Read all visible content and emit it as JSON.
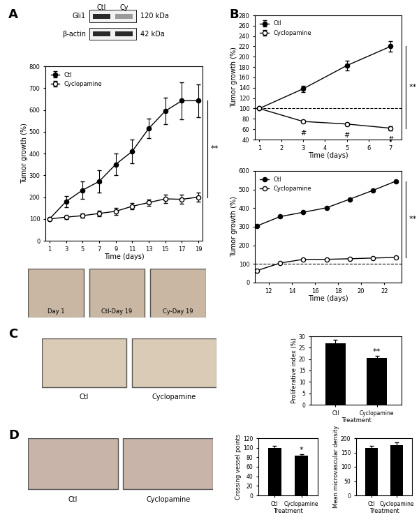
{
  "panel_labels": [
    "A",
    "B",
    "C",
    "D"
  ],
  "blot": {
    "lanes": [
      "Ctl",
      "Cy"
    ],
    "bands": [
      {
        "name": "Gli1",
        "size": "120 kDa"
      },
      {
        "name": "β-actin",
        "size": "42 kDa"
      }
    ]
  },
  "photos": {
    "A": [
      "Day 1",
      "Ctl-Day 19",
      "Cy-Day 19"
    ],
    "C": [
      "Ctl",
      "Cyclopamine"
    ],
    "D": [
      "Ctl",
      "Cyclopamine"
    ]
  },
  "chart_data": [
    {
      "type": "line",
      "x_label": "Time (days)",
      "y_label": "Tumor growth (%)",
      "x": [
        1,
        3,
        5,
        7,
        9,
        11,
        13,
        15,
        17,
        19
      ],
      "xlim": [
        0.5,
        19.5
      ],
      "xticks": [
        1,
        3,
        5,
        7,
        9,
        11,
        13,
        15,
        17,
        19
      ],
      "ylim": [
        0,
        800
      ],
      "yticks": [
        0,
        100,
        200,
        300,
        400,
        500,
        600,
        700,
        800
      ],
      "legend": "upper left",
      "series": [
        {
          "name": "Ctl",
          "color": "#000000",
          "marker": "filled_circle",
          "values": [
            100,
            180,
            232,
            272,
            350,
            410,
            515,
            595,
            642,
            642
          ],
          "error": [
            0,
            25,
            40,
            50,
            50,
            55,
            45,
            60,
            85,
            75
          ]
        },
        {
          "name": "Cyclopamine",
          "color": "#000000",
          "marker": "open_circle",
          "values": [
            100,
            108,
            115,
            125,
            135,
            158,
            175,
            192,
            190,
            200
          ],
          "error": [
            0,
            8,
            10,
            12,
            15,
            15,
            15,
            18,
            20,
            20
          ]
        }
      ],
      "annotations": [
        {
          "text": "**"
        }
      ]
    },
    {
      "type": "line",
      "x_label": "Time (days)",
      "y_label": "Tumor growth (%)",
      "x": [
        1,
        3,
        5,
        7
      ],
      "xlim": [
        0.8,
        7.5
      ],
      "xticks": [
        1,
        2,
        3,
        4,
        5,
        6,
        7
      ],
      "ylim": [
        40,
        280
      ],
      "yticks": [
        40,
        60,
        80,
        100,
        120,
        140,
        160,
        180,
        200,
        220,
        240,
        260,
        280
      ],
      "legend": "upper left",
      "reference_line": 100,
      "series": [
        {
          "name": "Ctl",
          "color": "#000000",
          "marker": "filled_circle",
          "values": [
            100,
            138,
            183,
            220
          ],
          "error": [
            0,
            6,
            10,
            10
          ]
        },
        {
          "name": "Cyclopamine",
          "color": "#000000",
          "marker": "open_circle",
          "values": [
            100,
            75,
            70,
            62
          ],
          "error": [
            0,
            3,
            3,
            4
          ]
        }
      ],
      "annotations": [
        {
          "text": "**"
        },
        {
          "text": "#",
          "x": 3,
          "series": "Cyclopamine"
        },
        {
          "text": "#",
          "x": 5,
          "series": "Cyclopamine"
        },
        {
          "text": "#",
          "x": 7,
          "series": "Cyclopamine"
        }
      ]
    },
    {
      "type": "line",
      "x_label": "Time (days)",
      "y_label": "Tumor growth (%)",
      "x": [
        11,
        13,
        15,
        17,
        19,
        21,
        23
      ],
      "xlim": [
        10.8,
        23.5
      ],
      "xticks": [
        12,
        14,
        16,
        18,
        20,
        22
      ],
      "ylim": [
        0,
        600
      ],
      "yticks": [
        0,
        100,
        200,
        300,
        400,
        500,
        600
      ],
      "legend": "upper left",
      "reference_line": 100,
      "series": [
        {
          "name": "Ctl",
          "color": "#000000",
          "marker": "filled_circle",
          "values": [
            305,
            355,
            378,
            402,
            448,
            495,
            545
          ]
        },
        {
          "name": "Cyclopamine",
          "color": "#000000",
          "marker": "open_circle",
          "values": [
            65,
            105,
            125,
            125,
            128,
            132,
            135
          ]
        }
      ],
      "annotations": [
        {
          "text": "**"
        }
      ]
    },
    {
      "type": "bar",
      "x_label": "Treatment",
      "y_label": "Proliferative index (%)",
      "categories": [
        "Ctl",
        "Cyclopamine"
      ],
      "values": [
        27,
        20.5
      ],
      "error": [
        1.5,
        0.8
      ],
      "color": "#000000",
      "ylim": [
        0,
        30
      ],
      "yticks": [
        0,
        5,
        10,
        15,
        20,
        25,
        30
      ],
      "annotations": [
        {
          "text": "**",
          "category": "Cyclopamine"
        }
      ]
    },
    {
      "type": "bar",
      "x_label": "Treatment",
      "y_label": "Crossing vessel points",
      "categories": [
        "Ctl",
        "Cyclopamine"
      ],
      "values": [
        100,
        83
      ],
      "error": [
        4,
        3
      ],
      "color": "#000000",
      "ylim": [
        0,
        120
      ],
      "yticks": [
        0,
        20,
        40,
        60,
        80,
        100,
        120
      ],
      "annotations": [
        {
          "text": "*",
          "category": "Cyclopamine"
        }
      ]
    },
    {
      "type": "bar",
      "x_label": "Treatment",
      "y_label": "Mean microvascular density",
      "categories": [
        "Ctl",
        "Cyclopamine"
      ],
      "values": [
        167,
        175
      ],
      "error": [
        6,
        10
      ],
      "color": "#000000",
      "ylim": [
        0,
        200
      ],
      "yticks": [
        0,
        50,
        100,
        150,
        200
      ]
    }
  ]
}
